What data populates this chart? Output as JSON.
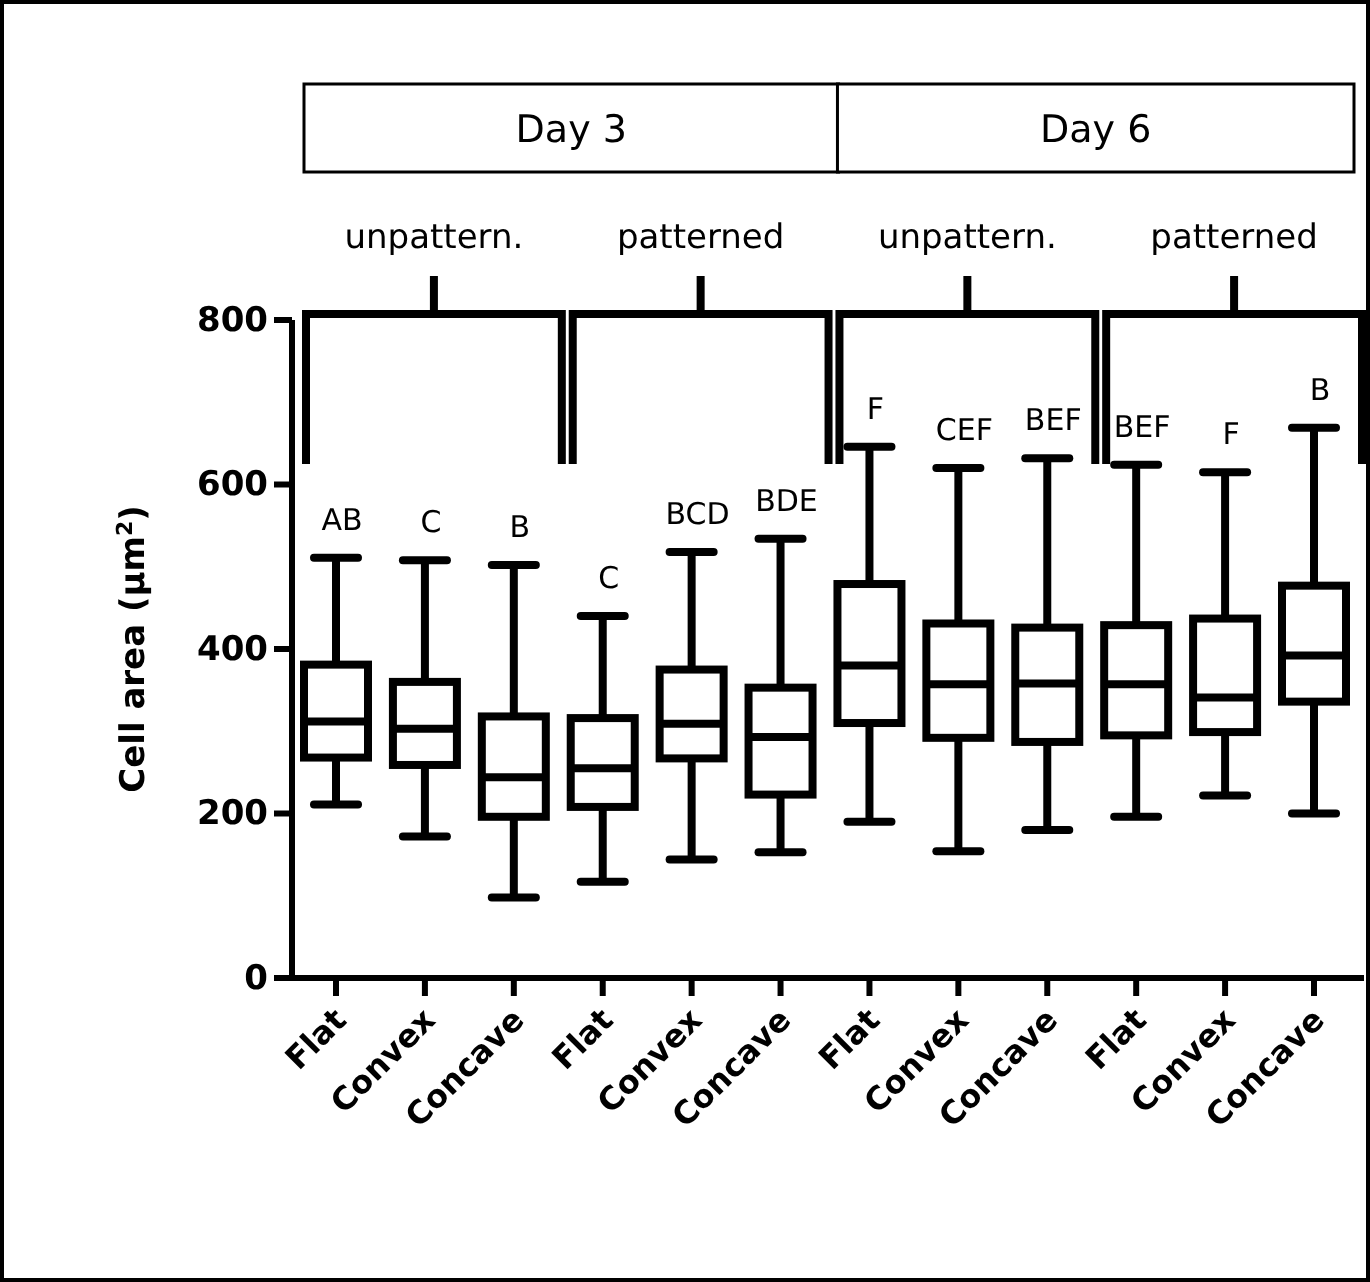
{
  "chart_data": {
    "type": "box",
    "ylabel": "Cell area (µm$^{2}$)",
    "categories": [
      "Flat",
      "Convex",
      "Concave",
      "Flat",
      "Convex",
      "Concave",
      "Flat",
      "Convex",
      "Concave",
      "Flat",
      "Convex",
      "Concave"
    ],
    "ylim": [
      0,
      800
    ],
    "yticks": [
      0,
      200,
      400,
      600,
      800
    ],
    "grid": false,
    "color": "#000000",
    "boxes": [
      {
        "low": 211,
        "q1": 268,
        "median": 312,
        "q3": 381,
        "high": 511
      },
      {
        "low": 172,
        "q1": 259,
        "median": 303,
        "q3": 360,
        "high": 508
      },
      {
        "low": 98,
        "q1": 196,
        "median": 244,
        "q3": 318,
        "high": 502
      },
      {
        "low": 117,
        "q1": 208,
        "median": 255,
        "q3": 316,
        "high": 440
      },
      {
        "low": 144,
        "q1": 267,
        "median": 309,
        "q3": 375,
        "high": 518
      },
      {
        "low": 153,
        "q1": 223,
        "median": 293,
        "q3": 353,
        "high": 534
      },
      {
        "low": 190,
        "q1": 310,
        "median": 380,
        "q3": 479,
        "high": 646
      },
      {
        "low": 154,
        "q1": 292,
        "median": 357,
        "q3": 431,
        "high": 620
      },
      {
        "low": 180,
        "q1": 287,
        "median": 358,
        "q3": 426,
        "high": 632
      },
      {
        "low": 196,
        "q1": 295,
        "median": 357,
        "q3": 429,
        "high": 624
      },
      {
        "low": 222,
        "q1": 299,
        "median": 341,
        "q3": 437,
        "high": 615
      },
      {
        "low": 200,
        "q1": 336,
        "median": 392,
        "q3": 477,
        "high": 669
      }
    ],
    "annotations": [
      "AB",
      "C",
      "B",
      "C",
      "BCD",
      "BDE",
      "F",
      "CEF",
      "BEF",
      "BEF",
      "F",
      "B",
      "Day 3",
      "Day 6",
      "unpattern.",
      "patterned",
      "unpattern.",
      "patterned"
    ]
  }
}
